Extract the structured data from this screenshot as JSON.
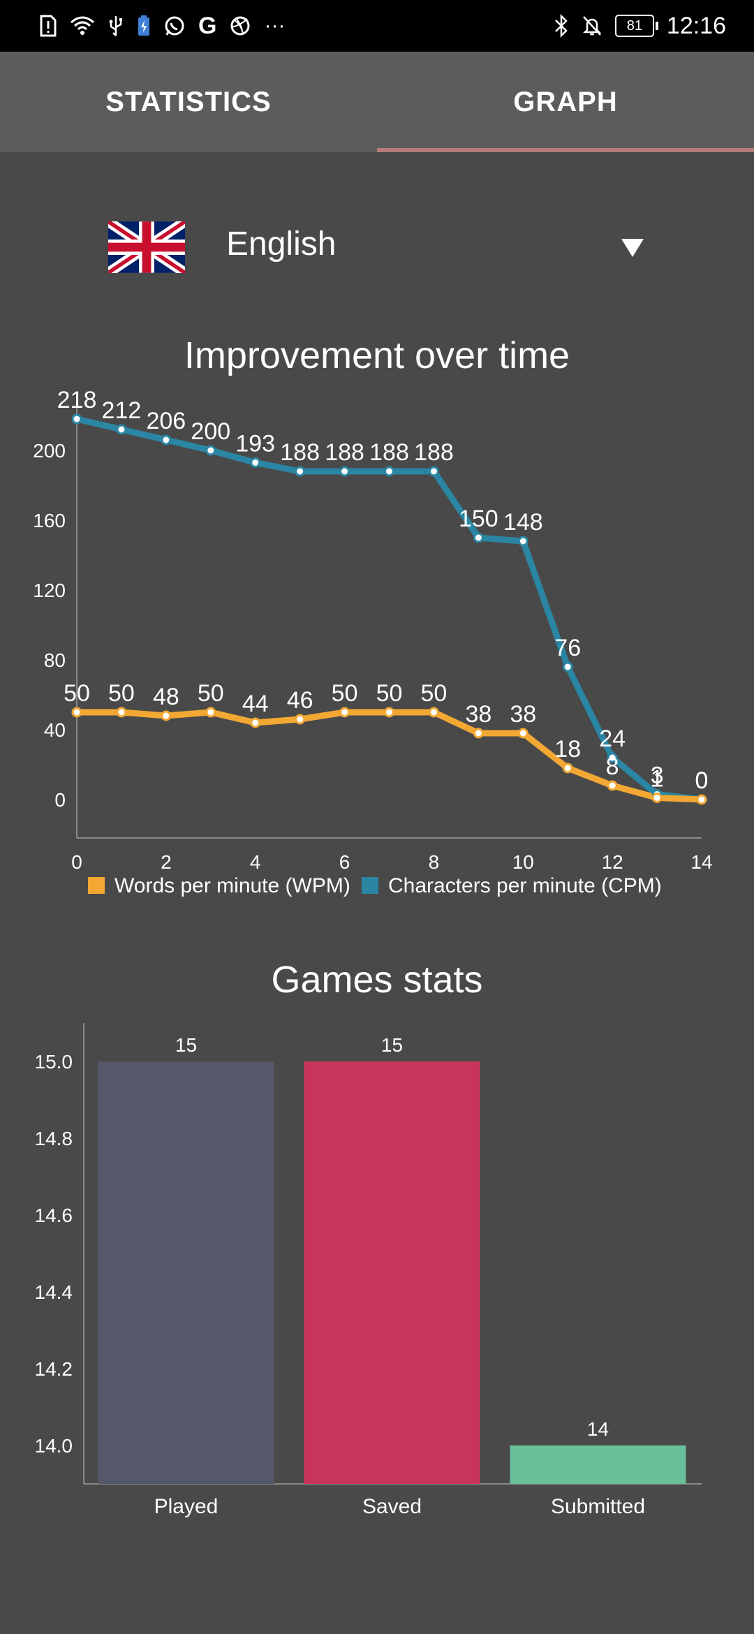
{
  "status_bar": {
    "time": "12:16",
    "battery": "81",
    "left_icons": [
      "alert-icon",
      "wifi-icon",
      "usb-icon",
      "battery-saver-icon",
      "whatsapp-icon",
      "google-icon",
      "dribbble-icon",
      "more-icon"
    ],
    "right_icons": [
      "bluetooth-icon",
      "notifications-off-icon"
    ]
  },
  "tabs": [
    {
      "label": "STATISTICS",
      "active": false
    },
    {
      "label": "GRAPH",
      "active": true
    }
  ],
  "language": {
    "label": "English",
    "flag_icon": "uk-flag-icon"
  },
  "colors": {
    "wpm": "#F2A833",
    "cpm": "#2A86A3",
    "played": "#545869",
    "saved": "#C7365A",
    "submitted": "#6BBF9A",
    "tab_indicator": "#B77B7B"
  },
  "chart_data": [
    {
      "type": "line",
      "title": "Improvement over time",
      "x": [
        0,
        1,
        2,
        3,
        4,
        5,
        6,
        7,
        8,
        9,
        10,
        11,
        12,
        13,
        14
      ],
      "series": [
        {
          "name": "Words per minute (WPM)",
          "values": [
            50,
            50,
            48,
            50,
            44,
            46,
            50,
            50,
            50,
            38,
            38,
            18,
            8,
            1,
            0
          ]
        },
        {
          "name": "Characters per minute (CPM)",
          "values": [
            218,
            212,
            206,
            200,
            193,
            188,
            188,
            188,
            188,
            150,
            148,
            76,
            24,
            3,
            0
          ]
        }
      ],
      "x_ticks": [
        0,
        2,
        4,
        6,
        8,
        10,
        12,
        14
      ],
      "y_ticks": [
        0,
        40,
        80,
        120,
        160,
        200
      ],
      "xlim": [
        0,
        14
      ],
      "ylim": [
        -22,
        226
      ],
      "legend": "bottom",
      "grid": false
    },
    {
      "type": "bar",
      "title": "Games stats",
      "categories": [
        "Played",
        "Saved",
        "Submitted"
      ],
      "values": [
        15,
        15,
        14
      ],
      "y_ticks": [
        "15.0",
        "14.8",
        "14.6",
        "14.4",
        "14.2",
        "14.0"
      ],
      "ylim": [
        13.9,
        15.1
      ],
      "grid": false
    }
  ]
}
